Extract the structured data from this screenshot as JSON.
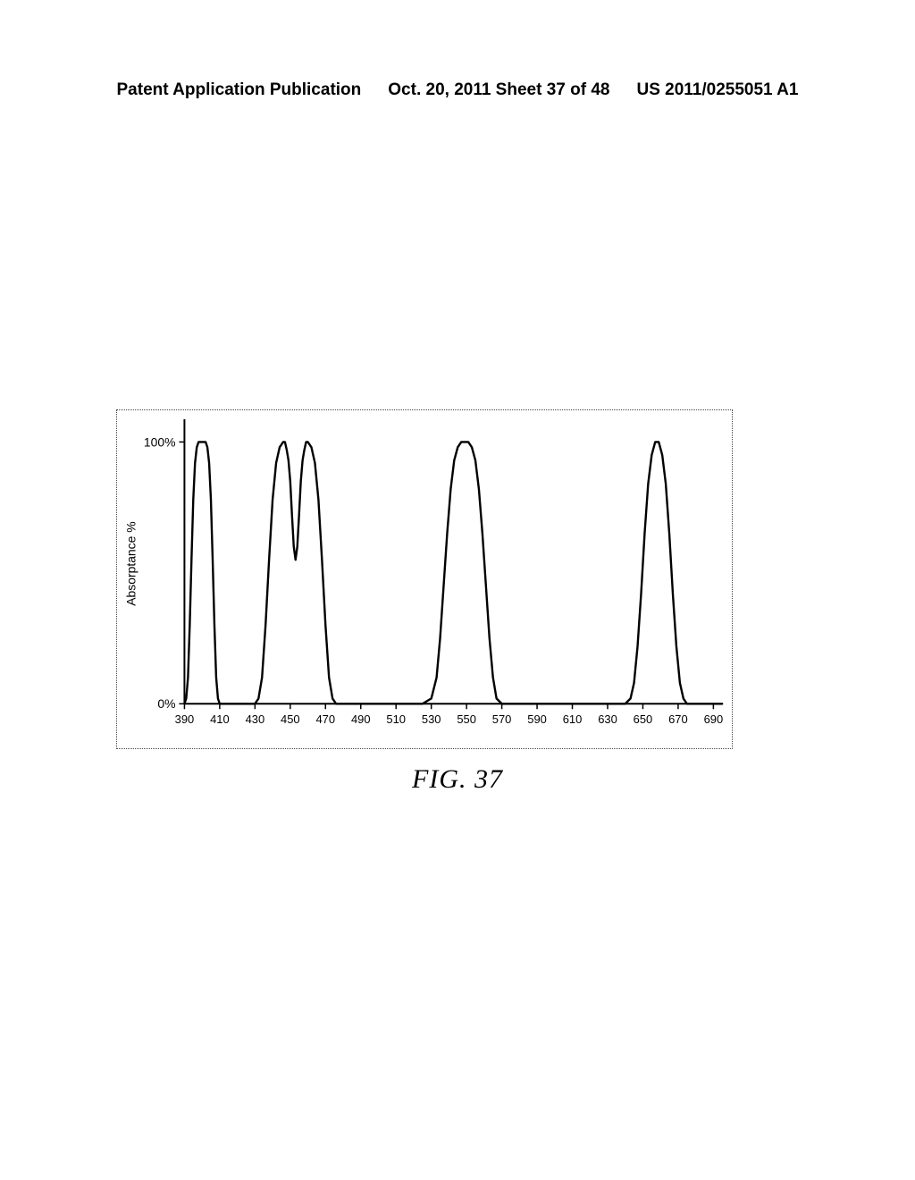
{
  "header": {
    "left": "Patent Application Publication",
    "center": "Oct. 20, 2011  Sheet 37 of 48",
    "right": "US 2011/0255051 A1"
  },
  "figure_caption": "FIG. 37",
  "chart": {
    "type": "line",
    "ylabel": "Absorptance %",
    "ylabel_fontsize": 14,
    "xlim": [
      390,
      695
    ],
    "ylim": [
      0,
      1.07
    ],
    "y_axis_ticks": [
      {
        "value": 0,
        "label": "0%"
      },
      {
        "value": 1.0,
        "label": "100%"
      }
    ],
    "x_axis_ticks": [
      390,
      410,
      430,
      450,
      470,
      490,
      510,
      530,
      550,
      570,
      590,
      610,
      630,
      650,
      670,
      690
    ],
    "line_color": "#000000",
    "line_width": 2.4,
    "background_color": "#ffffff",
    "axis_color": "#000000",
    "tick_font_size": 13,
    "data_points": [
      [
        390,
        0
      ],
      [
        391,
        0.02
      ],
      [
        392,
        0.1
      ],
      [
        393,
        0.3
      ],
      [
        394,
        0.55
      ],
      [
        395,
        0.78
      ],
      [
        396,
        0.92
      ],
      [
        397,
        0.98
      ],
      [
        398,
        1.0
      ],
      [
        399,
        1.0
      ],
      [
        400,
        1.0
      ],
      [
        401,
        1.0
      ],
      [
        402,
        1.0
      ],
      [
        403,
        0.98
      ],
      [
        404,
        0.92
      ],
      [
        405,
        0.78
      ],
      [
        406,
        0.55
      ],
      [
        407,
        0.3
      ],
      [
        408,
        0.1
      ],
      [
        409,
        0.02
      ],
      [
        410,
        0
      ],
      [
        412,
        0
      ],
      [
        415,
        0
      ],
      [
        418,
        0
      ],
      [
        420,
        0
      ],
      [
        423,
        0
      ],
      [
        425,
        0
      ],
      [
        428,
        0
      ],
      [
        430,
        0
      ],
      [
        432,
        0.02
      ],
      [
        434,
        0.1
      ],
      [
        436,
        0.3
      ],
      [
        438,
        0.55
      ],
      [
        440,
        0.78
      ],
      [
        442,
        0.92
      ],
      [
        444,
        0.98
      ],
      [
        446,
        1.0
      ],
      [
        447,
        1.0
      ],
      [
        448,
        0.97
      ],
      [
        449,
        0.93
      ],
      [
        450,
        0.85
      ],
      [
        451,
        0.72
      ],
      [
        452,
        0.6
      ],
      [
        453,
        0.55
      ],
      [
        454,
        0.6
      ],
      [
        455,
        0.72
      ],
      [
        456,
        0.85
      ],
      [
        457,
        0.93
      ],
      [
        458,
        0.97
      ],
      [
        459,
        1.0
      ],
      [
        460,
        1.0
      ],
      [
        462,
        0.98
      ],
      [
        464,
        0.92
      ],
      [
        466,
        0.78
      ],
      [
        468,
        0.55
      ],
      [
        470,
        0.3
      ],
      [
        472,
        0.1
      ],
      [
        474,
        0.02
      ],
      [
        476,
        0
      ],
      [
        480,
        0
      ],
      [
        490,
        0
      ],
      [
        500,
        0
      ],
      [
        510,
        0
      ],
      [
        520,
        0
      ],
      [
        525,
        0
      ],
      [
        530,
        0.02
      ],
      [
        533,
        0.1
      ],
      [
        535,
        0.25
      ],
      [
        537,
        0.45
      ],
      [
        539,
        0.65
      ],
      [
        541,
        0.82
      ],
      [
        543,
        0.93
      ],
      [
        545,
        0.98
      ],
      [
        547,
        1.0
      ],
      [
        549,
        1.0
      ],
      [
        551,
        1.0
      ],
      [
        553,
        0.98
      ],
      [
        555,
        0.93
      ],
      [
        557,
        0.82
      ],
      [
        559,
        0.65
      ],
      [
        561,
        0.45
      ],
      [
        563,
        0.25
      ],
      [
        565,
        0.1
      ],
      [
        567,
        0.02
      ],
      [
        570,
        0
      ],
      [
        580,
        0
      ],
      [
        590,
        0
      ],
      [
        600,
        0
      ],
      [
        610,
        0
      ],
      [
        620,
        0
      ],
      [
        630,
        0
      ],
      [
        640,
        0
      ],
      [
        643,
        0.02
      ],
      [
        645,
        0.08
      ],
      [
        647,
        0.22
      ],
      [
        649,
        0.42
      ],
      [
        651,
        0.65
      ],
      [
        653,
        0.84
      ],
      [
        655,
        0.95
      ],
      [
        657,
        1.0
      ],
      [
        658,
        1.0
      ],
      [
        659,
        1.0
      ],
      [
        661,
        0.95
      ],
      [
        663,
        0.84
      ],
      [
        665,
        0.65
      ],
      [
        667,
        0.42
      ],
      [
        669,
        0.22
      ],
      [
        671,
        0.08
      ],
      [
        673,
        0.02
      ],
      [
        675,
        0
      ],
      [
        680,
        0
      ],
      [
        685,
        0
      ],
      [
        690,
        0
      ],
      [
        695,
        0
      ]
    ]
  }
}
